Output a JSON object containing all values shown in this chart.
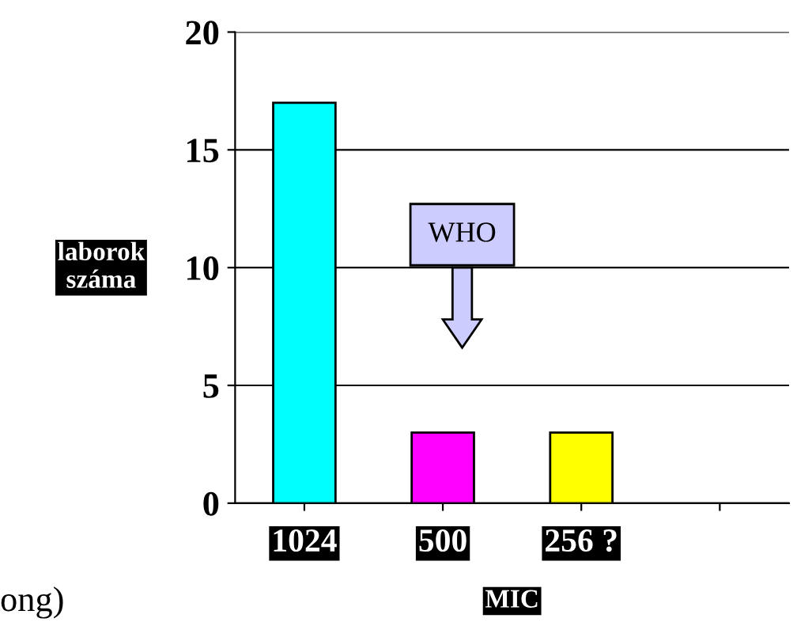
{
  "chart_data": {
    "type": "bar",
    "categories": [
      "1024",
      "500",
      "256 ?",
      null
    ],
    "values": [
      17,
      3,
      3,
      null
    ],
    "colors": [
      "#00ffff",
      "#ff00ff",
      "#ffff00",
      "#cccccc"
    ],
    "ylabel": "laborok\nszáma",
    "xlabel": "MIC",
    "ylim": [
      0,
      20
    ],
    "yticks": [
      0,
      5,
      10,
      15,
      20
    ],
    "grid": "y",
    "annotations": [
      "WHO",
      "ong)"
    ]
  }
}
